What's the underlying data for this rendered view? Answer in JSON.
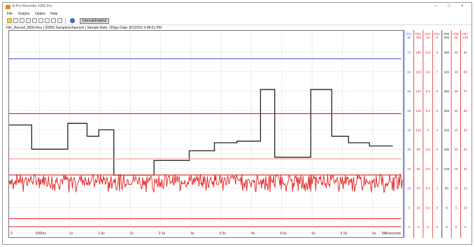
{
  "window": {
    "title": "E-Pro Recorder 2006 Pro",
    "controls": [
      "–",
      "□",
      "×"
    ]
  },
  "menu": [
    "File",
    "Graphs",
    "Option",
    "Help"
  ],
  "toolbar": {
    "interval_label": "Interval/Interval"
  },
  "info_line": "File_Record_0006.Rec  |  30000 Samples/channels  |  Sample Rate: 200µs  Date: 8/1/2010  3:48:01 PM",
  "chart_data": {
    "type": "line",
    "x_tick_labels": [
      "0",
      "500ms",
      "1s",
      "1.5s",
      "2s",
      "2.5s",
      "3s",
      "3.5s",
      "4s",
      "4.5s",
      "5s",
      "5.5s",
      "6s",
      "Milliseconds"
    ],
    "series": [
      {
        "color": "#222222",
        "values": [
          [
            0,
            126
          ],
          [
            0.27,
            126
          ],
          [
            0.27,
            96
          ],
          [
            0.7,
            96
          ],
          [
            0.7,
            128
          ],
          [
            0.93,
            128
          ],
          [
            0.93,
            112
          ],
          [
            1.07,
            112
          ],
          [
            1.07,
            120
          ],
          [
            1.25,
            120
          ],
          [
            1.25,
            64
          ],
          [
            1.73,
            64
          ],
          [
            1.73,
            82
          ],
          [
            2.15,
            82
          ],
          [
            2.15,
            94
          ],
          [
            2.45,
            94
          ],
          [
            2.45,
            104
          ],
          [
            2.72,
            104
          ],
          [
            2.72,
            106
          ],
          [
            3.0,
            106
          ],
          [
            3.0,
            170
          ],
          [
            3.17,
            170
          ],
          [
            3.17,
            86
          ],
          [
            3.6,
            86
          ],
          [
            3.6,
            170
          ],
          [
            3.85,
            170
          ],
          [
            3.85,
            112
          ],
          [
            4.05,
            112
          ],
          [
            4.05,
            104
          ],
          [
            4.3,
            104
          ],
          [
            4.3,
            100
          ],
          [
            4.58,
            100
          ]
        ]
      },
      {
        "color": "#e02020",
        "values": [
          [
            0,
            140
          ],
          [
            4.68,
            140
          ]
        ]
      },
      {
        "color": "#e02020",
        "values": [
          [
            0,
            0
          ],
          [
            4.68,
            0
          ]
        ]
      },
      {
        "color": "#e02020",
        "values": [
          [
            0,
            10
          ],
          [
            4.68,
            10
          ]
        ]
      },
      {
        "color": "#4b5bd6",
        "values": [
          [
            0,
            208
          ],
          [
            4.68,
            208
          ]
        ]
      },
      {
        "color": "#e02020",
        "values": [
          [
            0,
            64
          ],
          [
            4.68,
            64
          ]
        ]
      },
      {
        "color": "#ff9090",
        "values": [
          [
            0,
            84
          ],
          [
            4.68,
            84
          ]
        ]
      }
    ],
    "noisy_series": {
      "color": "#e02020",
      "baseline": 58,
      "amplitude": 12
    },
    "axes": [
      {
        "color": "#4b5bd6",
        "header": "Ch1",
        "ticks": [
          "80",
          "72",
          "64",
          "56",
          "48",
          "40",
          "32",
          "24",
          "16",
          "8",
          "0"
        ]
      },
      {
        "color": "#e02020",
        "header": "Ch2",
        "ticks": [
          "200",
          "180",
          "160",
          "140",
          "120",
          "100",
          "80",
          "60",
          "40",
          "20",
          "0"
        ]
      },
      {
        "color": "#e02020",
        "header": "Ch3",
        "ticks": [
          "10",
          "9.8",
          "9.6",
          "9.4",
          "9.2",
          "9",
          "8.8",
          "8.6",
          "8.4",
          "8.2",
          "8"
        ]
      },
      {
        "color": "#e02020",
        "header": "Ch4",
        "ticks": [
          "9",
          "8",
          "7",
          "6",
          "5",
          "4",
          "3",
          "2",
          "1",
          "0",
          "0"
        ]
      },
      {
        "color": "#222222",
        "header": "Ch5",
        "ticks": [
          "500",
          "480",
          "420",
          "360",
          "300",
          "240",
          "180",
          "120",
          "60",
          "0",
          "0"
        ]
      },
      {
        "color": "#e02020",
        "header": "Ch6",
        "ticks": [
          "50",
          "45",
          "40",
          "35",
          "30",
          "25",
          "20",
          "15",
          "10",
          "5",
          "0"
        ]
      },
      {
        "color": "#e02020",
        "header": "Ch7",
        "ticks": [
          "100",
          "90",
          "80",
          "70",
          "60",
          "50",
          "40",
          "30",
          "20",
          "10",
          "0"
        ]
      }
    ],
    "ylim": [
      0,
      240
    ],
    "xlim": [
      0,
      4.7
    ],
    "grid": true
  }
}
